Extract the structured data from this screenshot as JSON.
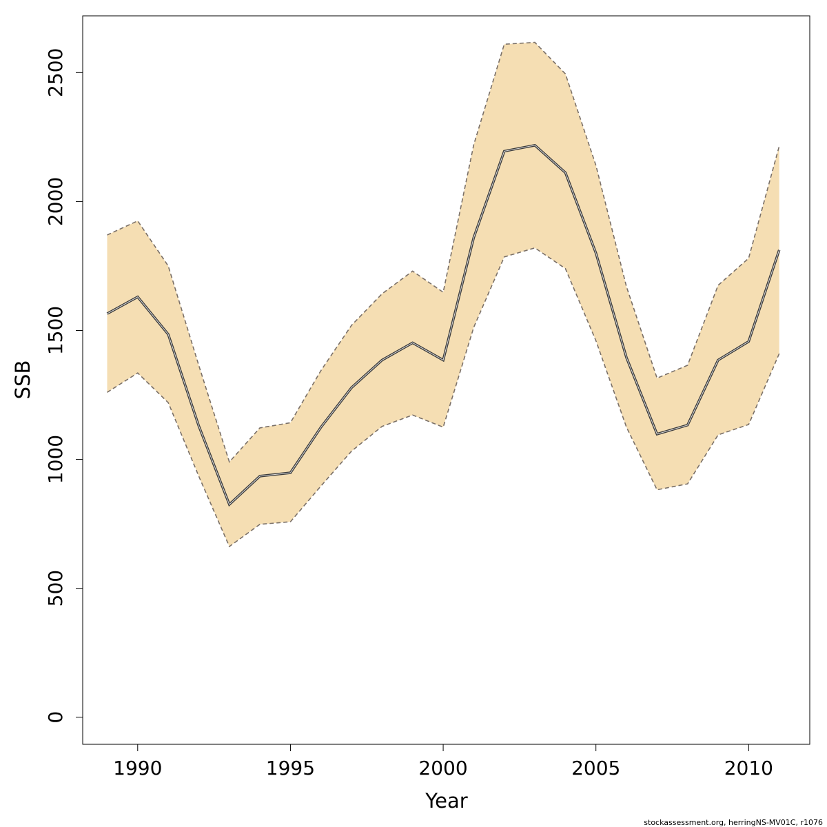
{
  "chart_data": {
    "type": "line",
    "title": "",
    "xlabel": "Year",
    "ylabel": "SSB",
    "x": [
      1989,
      1990,
      1991,
      1992,
      1993,
      1994,
      1995,
      1996,
      1997,
      1998,
      1999,
      2000,
      2001,
      2002,
      2003,
      2004,
      2005,
      2006,
      2007,
      2008,
      2009,
      2010,
      2011
    ],
    "series": [
      {
        "role": "estimate",
        "values": [
          1565,
          1630,
          1485,
          1130,
          825,
          935,
          948,
          1125,
          1278,
          1385,
          1452,
          1385,
          1860,
          2195,
          2218,
          2112,
          1800,
          1395,
          1098,
          1133,
          1385,
          1457,
          1812
        ]
      },
      {
        "role": "upper-bound",
        "values": [
          1870,
          1925,
          1750,
          1365,
          990,
          1122,
          1142,
          1345,
          1520,
          1642,
          1730,
          1648,
          2220,
          2610,
          2617,
          2495,
          2140,
          1670,
          1315,
          1365,
          1675,
          1780,
          2215
        ]
      },
      {
        "role": "lower-bound",
        "values": [
          1260,
          1335,
          1220,
          935,
          662,
          748,
          758,
          897,
          1032,
          1128,
          1172,
          1125,
          1512,
          1785,
          1820,
          1740,
          1460,
          1125,
          882,
          905,
          1095,
          1135,
          1410
        ]
      }
    ],
    "xlim": [
      1988.2,
      2012.0
    ],
    "ylim": [
      -105,
      2720
    ],
    "x_ticks": [
      1990,
      1995,
      2000,
      2005,
      2010
    ],
    "y_ticks": [
      0,
      500,
      1000,
      1500,
      2000,
      2500
    ],
    "x_tick_labels": [
      "1990",
      "1995",
      "2000",
      "2005",
      "2010"
    ],
    "y_tick_labels": [
      "0",
      "500",
      "1000",
      "1500",
      "2000",
      "2500"
    ],
    "grid": false,
    "legend": "none",
    "colors": {
      "band_fill": "#f5deb3",
      "bound_line": "#7a7068",
      "estimate_outer": "#3d3d3d",
      "estimate_inner": "#d9d9d9"
    }
  },
  "footnote": "stockassessment.org, herringNS-MV01C, r1076"
}
